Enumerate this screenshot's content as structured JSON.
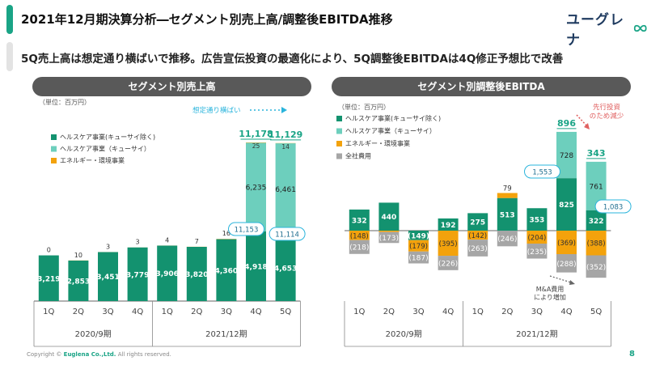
{
  "header": {
    "title": "2021年12月期決算分析―セグメント別売上高/調整後EBITDA推移",
    "subtitle": "5Q売上高は想定通り横ばいで推移。広告宣伝投資の最適化により、5Q調整後EBITDAは4Q修正予想比で改善",
    "logo_text": "ユーグレナ",
    "logo_icon": "infinity-icon"
  },
  "footer": {
    "prefix": "Copyright © ",
    "company": "Euglena Co.,Ltd.",
    "suffix": " All rights reserved.",
    "page": "8"
  },
  "colors": {
    "accent": "#1aa486",
    "dark_green": "#13926f",
    "light_green": "#6dcfbd",
    "orange": "#f3a20c",
    "gray": "#a6a6a6",
    "callout_red": "#e06060",
    "note_blue": "#2ab4dc"
  },
  "chart_data": [
    {
      "type": "bar",
      "stacked": true,
      "title": "セグメント別売上高",
      "unit_label": "（単位：百万円）",
      "categories": [
        "1Q",
        "2Q",
        "3Q",
        "4Q",
        "1Q",
        "2Q",
        "3Q",
        "4Q",
        "5Q"
      ],
      "groups": [
        {
          "label": "2020/9期",
          "count": 4
        },
        {
          "label": "2021/12期",
          "count": 5
        }
      ],
      "series": [
        {
          "name": "ヘルスケア事業(キューサイ除く)",
          "color": "#13926f",
          "values": [
            3219,
            2853,
            3451,
            3779,
            3906,
            3820,
            4360,
            4918,
            4653
          ]
        },
        {
          "name": "ヘルスケア事業（キューサイ）",
          "color": "#6dcfbd",
          "values": [
            0,
            0,
            0,
            0,
            0,
            0,
            0,
            6235,
            6461
          ]
        },
        {
          "name": "エネルギー・環境事業",
          "color": "#f3a20c",
          "values": [
            0,
            10,
            3,
            3,
            4,
            7,
            16,
            25,
            14
          ]
        }
      ],
      "totals": [
        null,
        null,
        null,
        null,
        null,
        null,
        null,
        "11,178",
        "11,129"
      ],
      "callouts": [
        "11,153",
        "11,114"
      ],
      "annotation": "想定通り横ばい",
      "ylim": [
        0,
        11500
      ]
    },
    {
      "type": "bar",
      "stacked": true,
      "title": "セグメント別調整後EBITDA",
      "unit_label": "（単位：百万円）",
      "categories": [
        "1Q",
        "2Q",
        "3Q",
        "4Q",
        "1Q",
        "2Q",
        "3Q",
        "4Q",
        "5Q"
      ],
      "groups": [
        {
          "label": "2020/9期",
          "count": 4
        },
        {
          "label": "2021/12期",
          "count": 5
        }
      ],
      "series": [
        {
          "name": "ヘルスケア事業(キューサイ除く)",
          "color": "#13926f",
          "values": [
            332,
            440,
            -149,
            192,
            275,
            513,
            353,
            825,
            322
          ]
        },
        {
          "name": "ヘルスケア事業（キューサイ）",
          "color": "#6dcfbd",
          "values": [
            0,
            0,
            0,
            0,
            0,
            0,
            0,
            728,
            761
          ]
        },
        {
          "name": "エネルギー・環境事業",
          "color": "#f3a20c",
          "values": [
            -148,
            -21,
            -179,
            -395,
            -142,
            79,
            -204,
            -369,
            -388
          ]
        },
        {
          "name": "全社費用",
          "color": "#a6a6a6",
          "values": [
            -218,
            -173,
            -187,
            -226,
            -263,
            -246,
            -235,
            -288,
            -352
          ]
        }
      ],
      "totals": [
        null,
        null,
        null,
        null,
        null,
        null,
        null,
        "896",
        "343"
      ],
      "callouts": [
        "1,553",
        "1,083"
      ],
      "annotation_top": "先行投資\nのため減少",
      "annotation_bottom": "M&A費用\nにより増加",
      "ylim": [
        -750,
        1700
      ]
    }
  ]
}
